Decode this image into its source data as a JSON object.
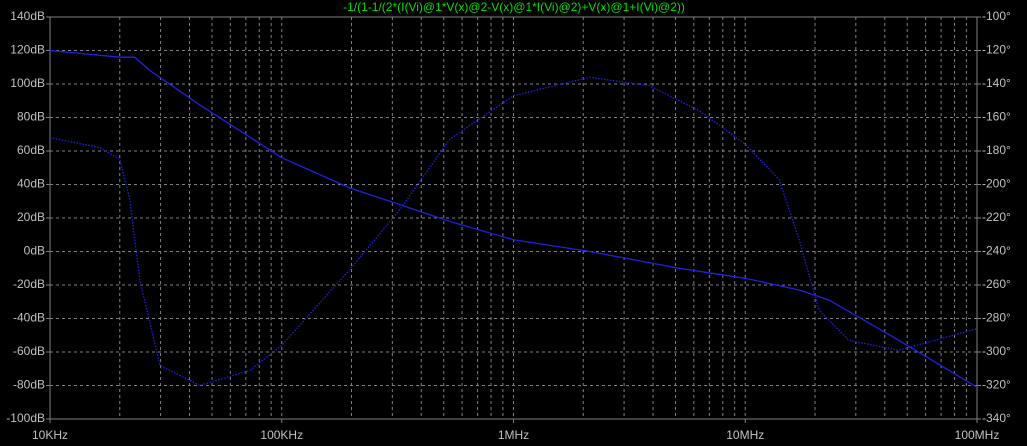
{
  "chart_data": {
    "type": "line",
    "title": "-1/(1-1/(2*(I(Vi)@1*V(x)@2-V(x)@1*I(Vi)@2)+V(x)@1+I(Vi)@2))",
    "log_x": true,
    "grid": true,
    "xlim": [
      10000,
      100000000
    ],
    "xticks": [
      {
        "value": 10000,
        "label": "10KHz"
      },
      {
        "value": 100000,
        "label": "100KHz"
      },
      {
        "value": 1000000,
        "label": "1MHz"
      },
      {
        "value": 10000000,
        "label": "10MHz"
      },
      {
        "value": 100000000,
        "label": "100MHz"
      }
    ],
    "ylim": [
      -100,
      140
    ],
    "yticks": [
      {
        "value": 140,
        "label": "140dB"
      },
      {
        "value": 120,
        "label": "120dB"
      },
      {
        "value": 100,
        "label": "100dB"
      },
      {
        "value": 80,
        "label": "80dB"
      },
      {
        "value": 60,
        "label": "60dB"
      },
      {
        "value": 40,
        "label": "40dB"
      },
      {
        "value": 20,
        "label": "20dB"
      },
      {
        "value": 0,
        "label": "0dB"
      },
      {
        "value": -20,
        "label": "-20dB"
      },
      {
        "value": -40,
        "label": "-40dB"
      },
      {
        "value": -60,
        "label": "-60dB"
      },
      {
        "value": -80,
        "label": "-80dB"
      },
      {
        "value": -100,
        "label": "-100dB"
      }
    ],
    "y2lim": [
      -340,
      -100
    ],
    "y2ticks": [
      {
        "value": -100,
        "label": "-100°"
      },
      {
        "value": -120,
        "label": "-120°"
      },
      {
        "value": -140,
        "label": "-140°"
      },
      {
        "value": -160,
        "label": "-160°"
      },
      {
        "value": -180,
        "label": "-180°"
      },
      {
        "value": -200,
        "label": "-200°"
      },
      {
        "value": -220,
        "label": "-220°"
      },
      {
        "value": -240,
        "label": "-240°"
      },
      {
        "value": -260,
        "label": "-260°"
      },
      {
        "value": -280,
        "label": "-280°"
      },
      {
        "value": -300,
        "label": "-300°"
      },
      {
        "value": -320,
        "label": "-320°"
      },
      {
        "value": -340,
        "label": "-340°"
      }
    ],
    "series": [
      {
        "color": "#2020e0",
        "dash": "solid",
        "x": [
          10000,
          20000,
          23200,
          27000,
          44300,
          100000,
          196000,
          323000,
          530000,
          1000000,
          2130000,
          5200000,
          10000000,
          17100000,
          23000000,
          46000000,
          100000000
        ],
        "values": [
          120,
          116,
          116,
          108,
          87.5,
          56,
          38,
          28,
          18,
          7,
          0,
          -10,
          -16,
          -23,
          -29,
          -53,
          -81
        ]
      },
      {
        "color": "#2020e0",
        "dash": "dotted",
        "axis": "y2",
        "x": [
          10000,
          16400,
          20000,
          22100,
          24400,
          29800,
          44300,
          72800,
          100000,
          196000,
          323000,
          530000,
          1000000,
          2130000,
          3860000,
          6340000,
          10000000,
          14000000,
          17100000,
          20800000,
          28000000,
          46000000,
          100000000
        ],
        "values": [
          -172,
          -178,
          -185,
          -209,
          -257,
          -308,
          -320,
          -311,
          -296,
          -251,
          -215,
          -173,
          -147,
          -136,
          -141,
          -156,
          -176,
          -197,
          -233,
          -275,
          -293,
          -299,
          -286
        ]
      }
    ]
  }
}
